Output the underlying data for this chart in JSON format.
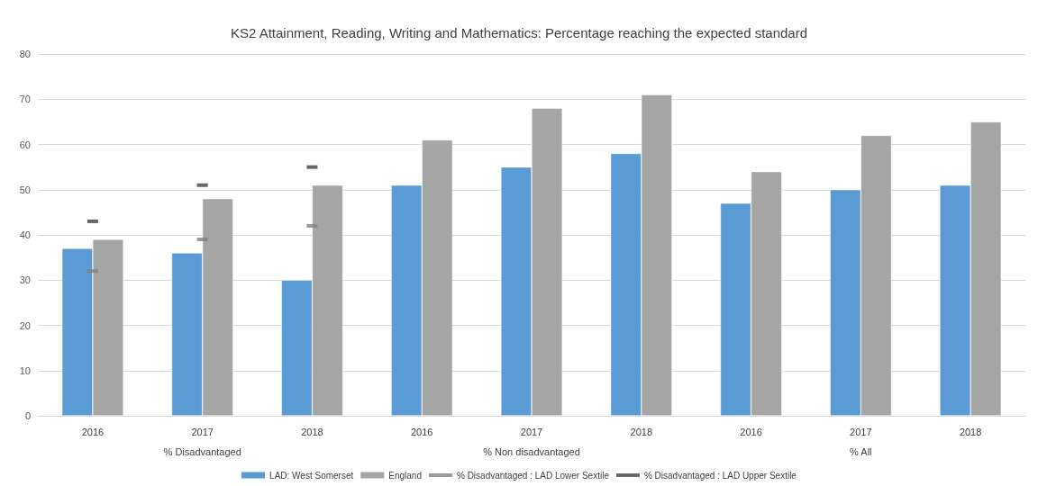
{
  "chart_data": {
    "type": "bar",
    "title": "KS2 Attainment, Reading, Writing and Mathematics: Percentage reaching the expected standard",
    "categories": [
      "2016",
      "2017",
      "2018",
      "2016",
      "2017",
      "2018",
      "2016",
      "2017",
      "2018"
    ],
    "annotations": [
      "% Disadvantaged",
      "% Non disadvantaged",
      "% All"
    ],
    "series": [
      {
        "name": "LAD: West Somerset",
        "color": "#5b9bd5",
        "values": [
          37,
          36,
          30,
          51,
          55,
          58,
          47,
          50,
          51
        ]
      },
      {
        "name": "England",
        "color": "#a5a5a5",
        "values": [
          39,
          48,
          51,
          61,
          68,
          71,
          54,
          62,
          65
        ]
      },
      {
        "name": "% Disadvantaged : LAD Lower Sextile",
        "type": "scatter",
        "color": "#7f7f7f",
        "values": [
          32,
          39,
          42,
          null,
          null,
          null,
          null,
          null,
          null
        ]
      },
      {
        "name": "% Disadvantaged : LAD Upper Sextile",
        "type": "scatter",
        "color": "#404040",
        "values": [
          43,
          51,
          55,
          null,
          null,
          null,
          null,
          null,
          null
        ]
      }
    ],
    "ylim": [
      0,
      80
    ],
    "yticks": [
      0,
      10,
      20,
      30,
      40,
      50,
      60,
      70,
      80
    ],
    "grid": "y",
    "legend": "bottom"
  }
}
